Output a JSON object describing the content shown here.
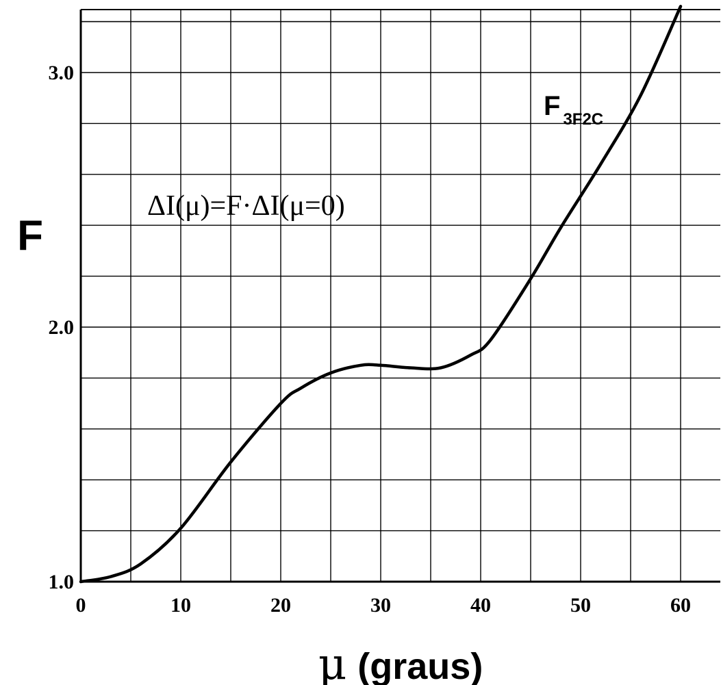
{
  "chart_data": {
    "type": "line",
    "title": "",
    "xlabel": {
      "symbol": "μ",
      "text": "(graus)"
    },
    "ylabel": "F",
    "xlim": [
      0,
      64
    ],
    "ylim": [
      1.0,
      3.26
    ],
    "x_ticks": [
      0,
      10,
      20,
      30,
      40,
      50,
      60
    ],
    "x_tick_labels": [
      "0",
      "10",
      "20",
      "30",
      "40",
      "50",
      "60"
    ],
    "y_ticks": [
      1.0,
      2.0,
      3.0
    ],
    "y_tick_labels": [
      "1.0",
      "2.0",
      "3.0"
    ],
    "grid": true,
    "grid_x_step": 5,
    "grid_y_step": 0.2,
    "line_color": "#000000",
    "annotation": {
      "formula": "ΔI(μ)=F·ΔI(μ=0)"
    },
    "series": [
      {
        "name": "F3F2C",
        "label_main": "F",
        "label_sub": "3F2C",
        "x": [
          0,
          3,
          6,
          10,
          15,
          20,
          22,
          25,
          28,
          30,
          33,
          36,
          39,
          41,
          45,
          48,
          52,
          56,
          60
        ],
        "y": [
          1.0,
          1.02,
          1.07,
          1.21,
          1.47,
          1.7,
          1.76,
          1.82,
          1.85,
          1.85,
          1.84,
          1.84,
          1.89,
          1.95,
          2.19,
          2.39,
          2.64,
          2.91,
          3.26
        ]
      }
    ]
  }
}
